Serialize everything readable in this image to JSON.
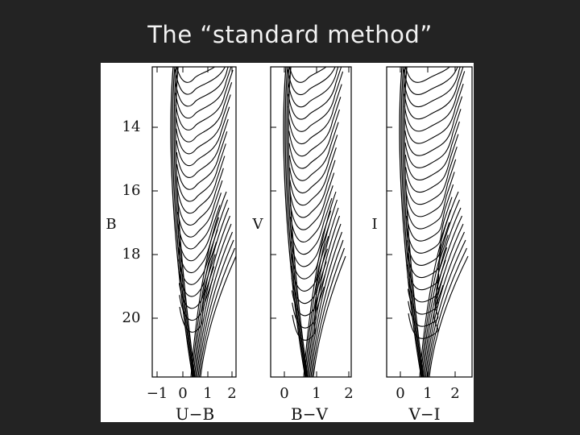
{
  "slide": {
    "title": "The “standard method”"
  },
  "colors": {
    "background": "#232323",
    "title": "#f2f2f2",
    "figure_bg": "#ffffff",
    "ink": "#000000"
  },
  "figure": {
    "panels": [
      {
        "id": "ub",
        "y_label": "B",
        "x_label": "U−B",
        "y_ticks": [
          "14",
          "16",
          "18",
          "20"
        ],
        "x_ticks": [
          "−1",
          "0",
          "1",
          "2"
        ]
      },
      {
        "id": "bv",
        "y_label": "V",
        "x_label": "B−V",
        "y_ticks": [],
        "x_ticks": [
          "0",
          "1",
          "2"
        ]
      },
      {
        "id": "vi",
        "y_label": "I",
        "x_label": "V−I",
        "y_ticks": [],
        "x_ticks": [
          "0",
          "1",
          "2"
        ]
      }
    ]
  }
}
